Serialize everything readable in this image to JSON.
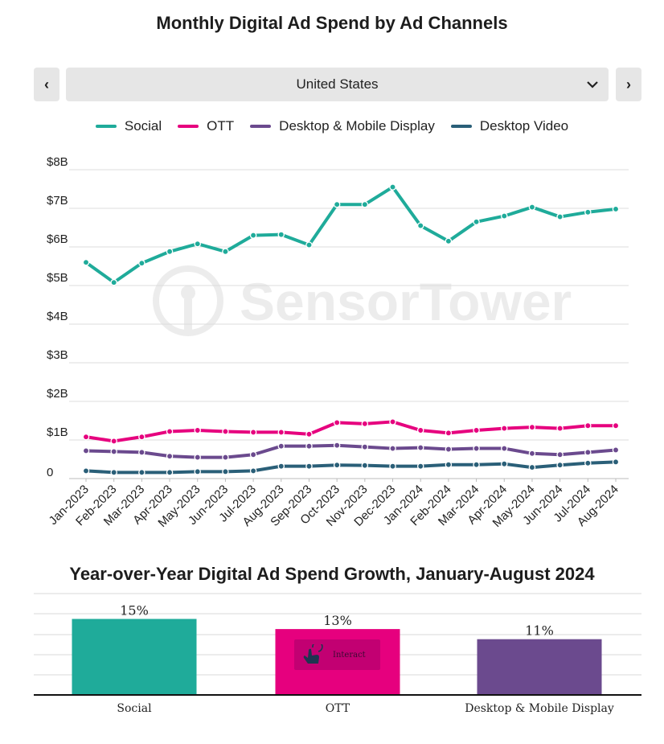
{
  "header": {
    "title": "Monthly Digital Ad Spend by Ad Channels"
  },
  "country_select": {
    "value": "United States",
    "prev_glyph": "‹",
    "next_glyph": "›",
    "chevron_glyph": "⌄"
  },
  "chart_data": [
    {
      "type": "line",
      "x": [
        "Jan-2023",
        "Feb-2023",
        "Mar-2023",
        "Apr-2023",
        "May-2023",
        "Jun-2023",
        "Jul-2023",
        "Aug-2023",
        "Sep-2023",
        "Oct-2023",
        "Nov-2023",
        "Dec-2023",
        "Jan-2024",
        "Feb-2024",
        "Mar-2024",
        "Apr-2024",
        "May-2024",
        "Jun-2024",
        "Jul-2024",
        "Aug-2024"
      ],
      "y_ticks": [
        "0",
        "$1B",
        "$2B",
        "$3B",
        "$4B",
        "$5B",
        "$6B",
        "$7B",
        "$8B"
      ],
      "ylim": [
        0,
        8
      ],
      "grid": true,
      "legend_position": "top",
      "series": [
        {
          "name": "Social",
          "color": "#1fab9a",
          "values": [
            5.6,
            5.08,
            5.58,
            5.88,
            6.08,
            5.88,
            6.3,
            6.32,
            6.05,
            7.1,
            7.1,
            7.55,
            6.55,
            6.15,
            6.65,
            6.8,
            7.03,
            6.78,
            6.9,
            6.98
          ]
        },
        {
          "name": "OTT",
          "color": "#e6007e",
          "values": [
            1.08,
            0.97,
            1.08,
            1.22,
            1.25,
            1.22,
            1.2,
            1.2,
            1.15,
            1.45,
            1.42,
            1.47,
            1.25,
            1.18,
            1.25,
            1.3,
            1.33,
            1.3,
            1.37,
            1.37
          ]
        },
        {
          "name": "Desktop & Mobile Display",
          "color": "#6b4a8e",
          "values": [
            0.72,
            0.7,
            0.68,
            0.58,
            0.55,
            0.55,
            0.62,
            0.84,
            0.84,
            0.86,
            0.82,
            0.78,
            0.8,
            0.76,
            0.78,
            0.78,
            0.65,
            0.62,
            0.68,
            0.74
          ]
        },
        {
          "name": "Desktop Video",
          "color": "#2a5f78",
          "values": [
            0.2,
            0.16,
            0.16,
            0.16,
            0.18,
            0.18,
            0.2,
            0.32,
            0.32,
            0.35,
            0.34,
            0.32,
            0.32,
            0.36,
            0.36,
            0.38,
            0.29,
            0.35,
            0.4,
            0.43
          ]
        }
      ]
    },
    {
      "type": "bar",
      "title": "Year-over-Year Digital Ad Spend Growth, January-August 2024",
      "categories": [
        "Social",
        "OTT",
        "Desktop & Mobile Display"
      ],
      "values": [
        15,
        13,
        11
      ],
      "value_labels": [
        "15%",
        "13%",
        "11%"
      ],
      "colors": [
        "#1fab9a",
        "#e6007e",
        "#6b4a8e"
      ],
      "ylim": [
        0,
        20
      ],
      "grid": true
    }
  ],
  "interact_button": {
    "label": "Interact",
    "icon": "hand-pointer-icon"
  },
  "watermark": {
    "text": "SensorTower",
    "icon": "sensor-tower-logo"
  }
}
